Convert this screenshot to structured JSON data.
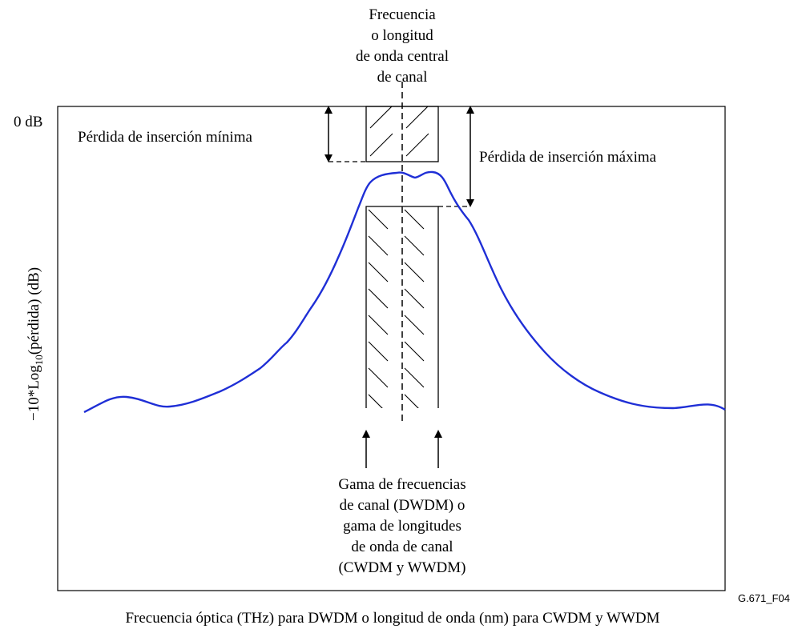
{
  "center_label": [
    "Frecuencia",
    "o longitud",
    "de onda central",
    "de canal"
  ],
  "zero_label": "0 dB",
  "min_loss_label": "Pérdida de inserción mínima",
  "max_loss_label": "Pérdida de inserción máxima",
  "y_axis_label": {
    "before": "−10*Log",
    "subscript": "10",
    "after": "(pérdida) (dB)"
  },
  "range_label": [
    "Gama de frecuencias",
    "de canal (DWDM) o",
    "gama de longitudes",
    "de onda de canal",
    "(CWDM y WWDM)"
  ],
  "figure_id": "G.671_F04",
  "x_axis_label": "Frecuencia óptica (THz) para DWDM o longitud de onda (nm) para CWDM y WWDM"
}
